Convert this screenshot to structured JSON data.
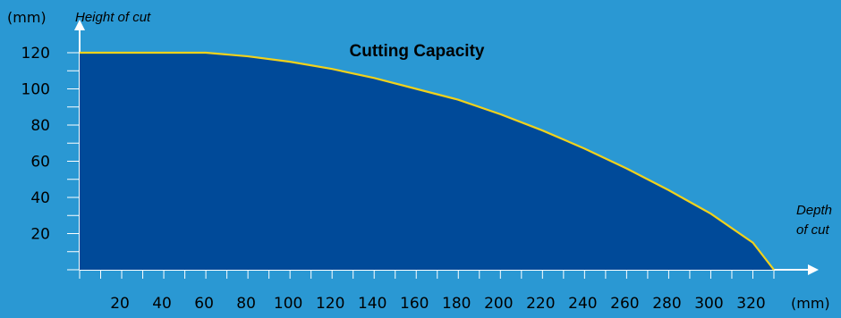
{
  "chart_data": {
    "type": "area",
    "title": "Cutting Capacity",
    "ylabel": "Height of cut",
    "xlabel": [
      "Depth",
      "of cut"
    ],
    "y_unit": "(mm)",
    "x_unit": "(mm)",
    "xlim": [
      0,
      330
    ],
    "ylim": [
      0,
      130
    ],
    "x_ticks": [
      20,
      40,
      60,
      80,
      100,
      120,
      140,
      160,
      180,
      200,
      220,
      240,
      260,
      280,
      300,
      320
    ],
    "y_ticks": [
      20,
      40,
      60,
      80,
      100,
      120
    ],
    "grid": false,
    "series": [
      {
        "x": [
          0,
          60,
          80,
          100,
          120,
          140,
          160,
          180,
          200,
          220,
          240,
          260,
          280,
          300,
          320,
          330
        ],
        "y": [
          120,
          120,
          118,
          115,
          111,
          106,
          100,
          94,
          86,
          77,
          67,
          56,
          44,
          31,
          15,
          0
        ]
      }
    ],
    "colors": {
      "background": "#2a98d3",
      "fill": "#004a99",
      "edge": "#f2d21b",
      "axis": "#ffffff"
    }
  }
}
